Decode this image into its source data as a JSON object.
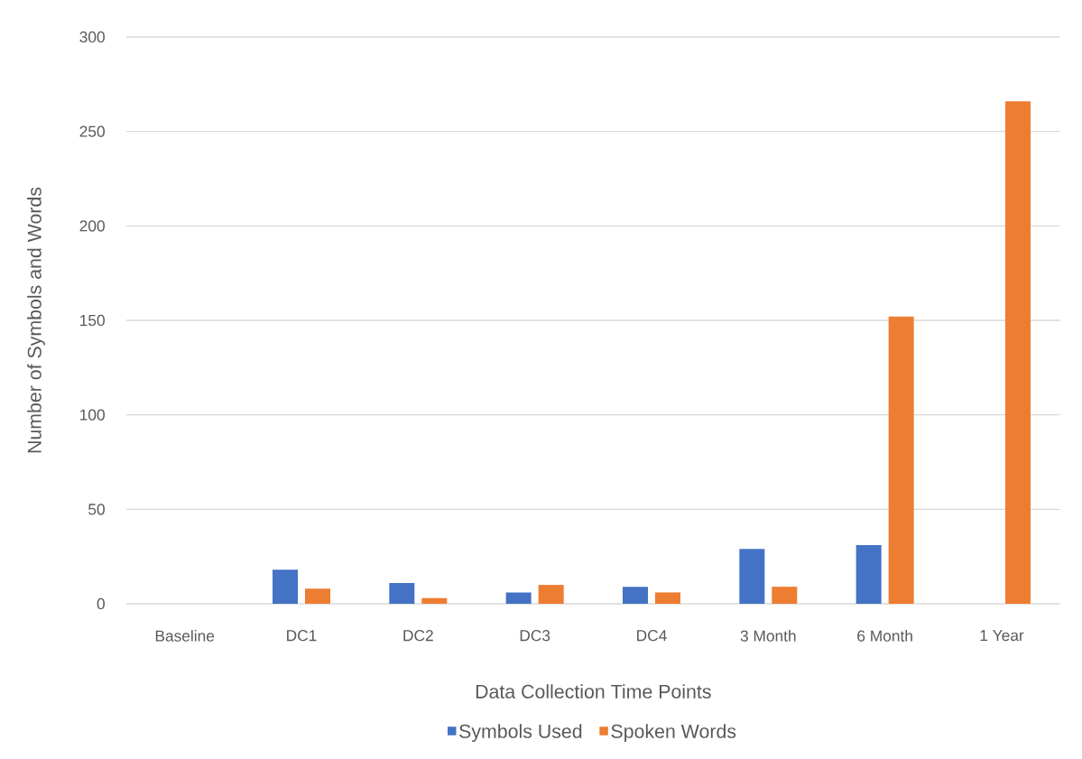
{
  "chart_data": {
    "type": "bar",
    "xlabel": "Data Collection Time Points",
    "ylabel": "Number of Symbols and Words",
    "categories": [
      "Baseline",
      "DC1",
      "DC2",
      "DC3",
      "DC4",
      "3 Month",
      "6 Month",
      "1 Year"
    ],
    "series": [
      {
        "name": "Symbols Used",
        "color": "#4472c4",
        "values": [
          0,
          18,
          11,
          6,
          9,
          29,
          31,
          0
        ]
      },
      {
        "name": "Spoken Words",
        "color": "#ed7d31",
        "values": [
          0,
          8,
          3,
          10,
          6,
          9,
          152,
          266
        ]
      }
    ],
    "ylim": [
      0,
      300
    ],
    "yticks": [
      0,
      50,
      100,
      150,
      200,
      250,
      300
    ],
    "grid": "y",
    "legend": "bottom"
  }
}
